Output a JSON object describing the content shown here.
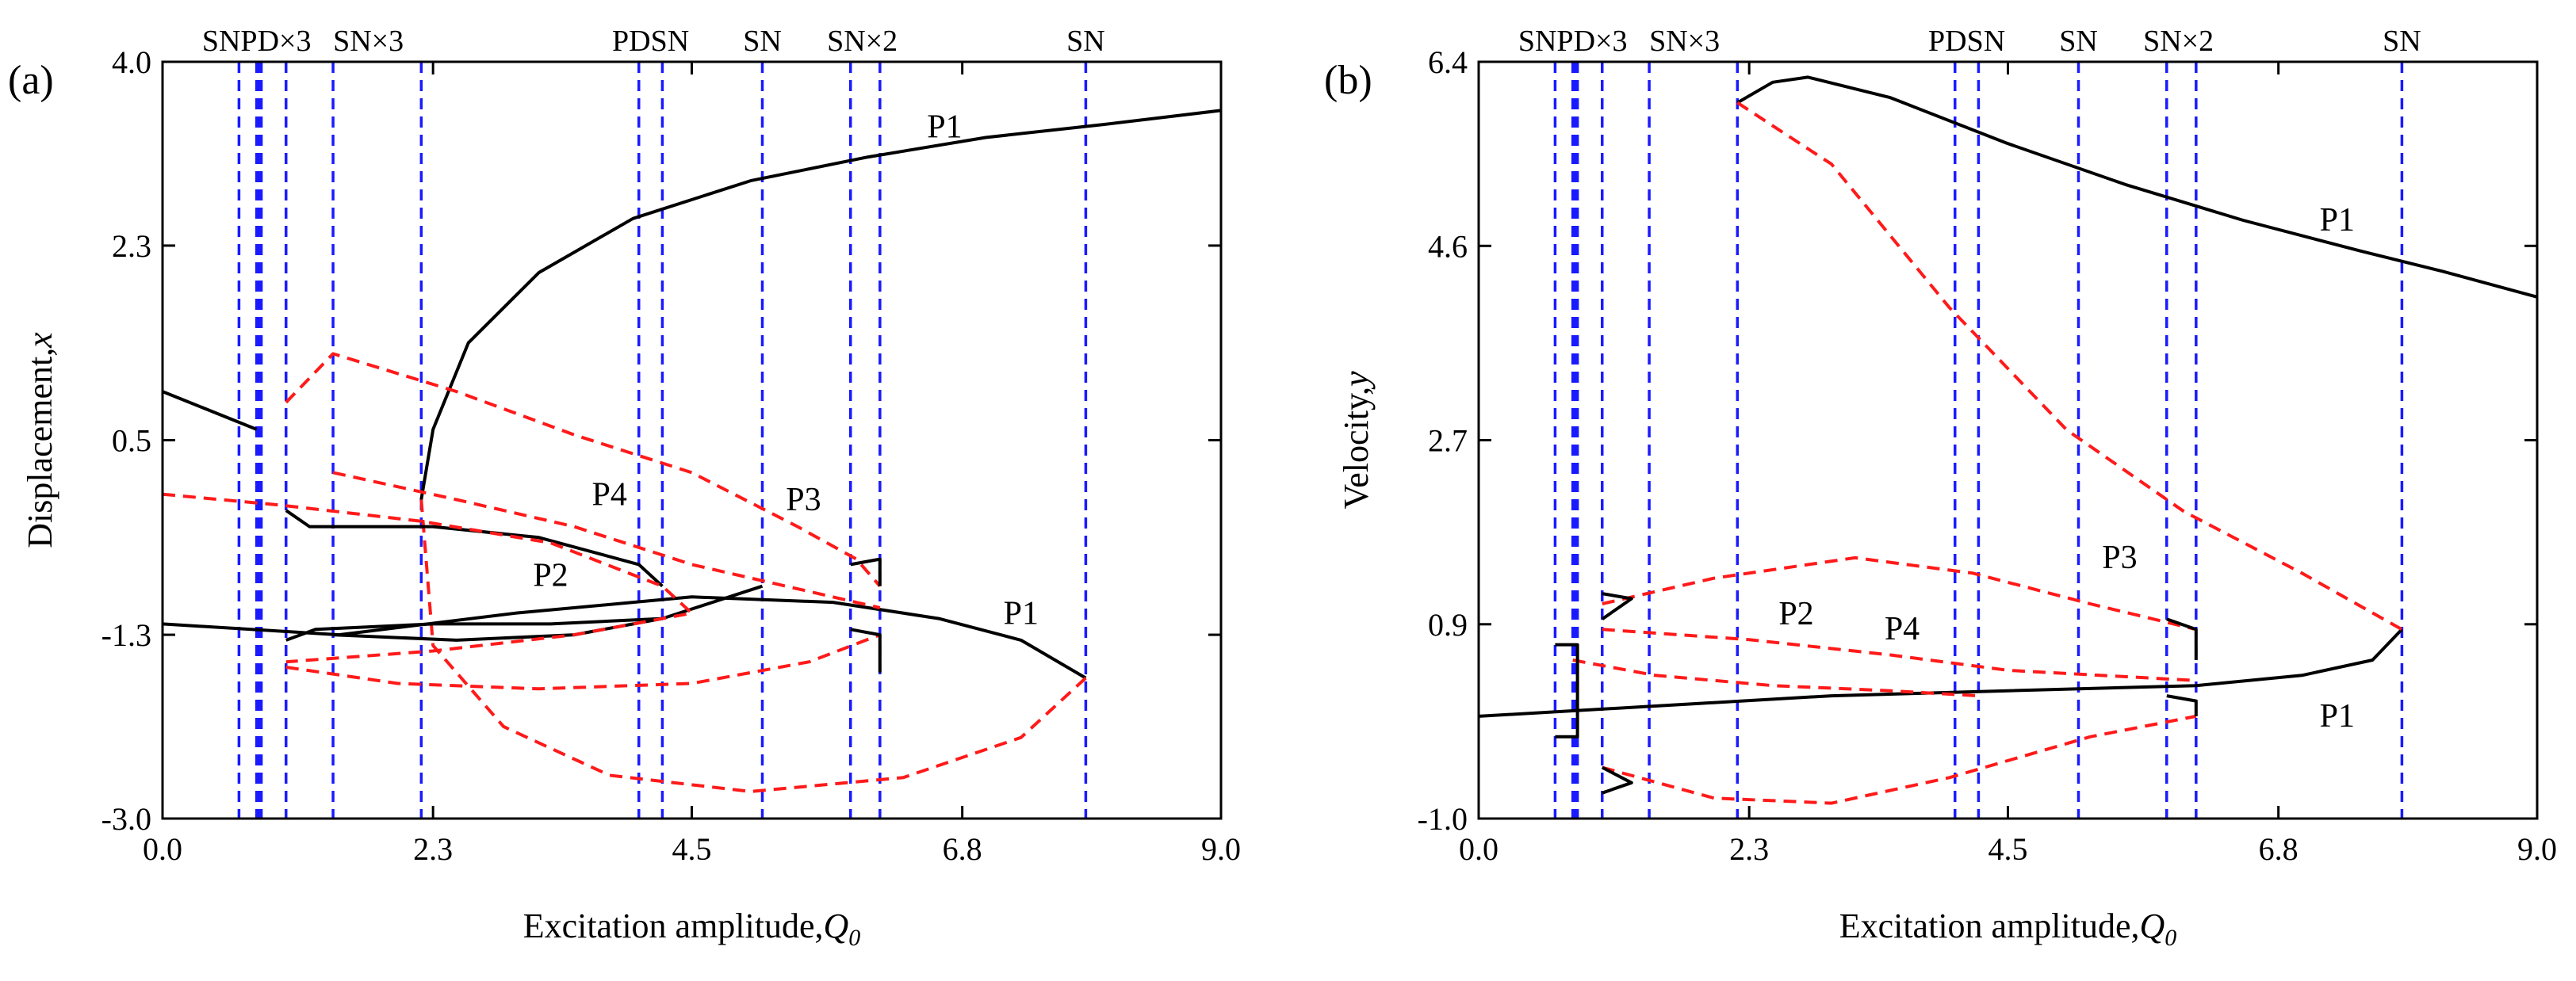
{
  "chart_data": [
    {
      "type": "line",
      "panel_label": "(a)",
      "xlabel_text": "Excitation amplitude,",
      "xlabel_symbol": "Q",
      "xlabel_sub": "0",
      "ylabel_text": "Displacement,",
      "ylabel_symbol": "x",
      "xlim": [
        0.0,
        9.0
      ],
      "ylim": [
        -3.0,
        4.0
      ],
      "xticks": [
        "0.0",
        "2.3",
        "4.5",
        "6.8",
        "9.0"
      ],
      "yticks": [
        "-3.0",
        "-1.3",
        "0.5",
        "2.3",
        "4.0"
      ],
      "bifurcation_lines": [
        0.65,
        0.8,
        0.82,
        0.84,
        1.05,
        1.45,
        2.2,
        4.05,
        4.25,
        5.1,
        5.85,
        6.1,
        7.85
      ],
      "top_labels": [
        {
          "text": "SNPD×3",
          "x": 0.8
        },
        {
          "text": "SN×3",
          "x": 1.75
        },
        {
          "text": "PDSN",
          "x": 4.15
        },
        {
          "text": "SN",
          "x": 5.1
        },
        {
          "text": "SN×2",
          "x": 5.95
        },
        {
          "text": "SN",
          "x": 7.85
        }
      ],
      "curve_labels": [
        {
          "text": "P1",
          "x": 6.65,
          "y": 3.3
        },
        {
          "text": "P1",
          "x": 7.3,
          "y": -1.2
        },
        {
          "text": "P2",
          "x": 3.3,
          "y": -0.85
        },
        {
          "text": "P3",
          "x": 5.45,
          "y": -0.15
        },
        {
          "text": "P4",
          "x": 3.8,
          "y": -0.1
        }
      ],
      "series": [
        {
          "name": "P1 upper",
          "style": "stable",
          "points": [
            [
              2.2,
              -0.05
            ],
            [
              2.3,
              0.6
            ],
            [
              2.6,
              1.4
            ],
            [
              3.2,
              2.05
            ],
            [
              4.0,
              2.55
            ],
            [
              5.0,
              2.9
            ],
            [
              6.0,
              3.12
            ],
            [
              7.0,
              3.3
            ],
            [
              8.0,
              3.42
            ],
            [
              9.0,
              3.55
            ]
          ]
        },
        {
          "name": "P1 lower",
          "style": "stable",
          "points": [
            [
              0.0,
              -1.2
            ],
            [
              1.5,
              -1.3
            ],
            [
              3.0,
              -1.1
            ],
            [
              4.5,
              -0.95
            ],
            [
              5.7,
              -1.0
            ],
            [
              6.6,
              -1.15
            ],
            [
              7.3,
              -1.35
            ],
            [
              7.85,
              -1.7
            ]
          ]
        },
        {
          "name": "P1 unstable (lower loop)",
          "style": "unstable",
          "points": [
            [
              7.85,
              -1.7
            ],
            [
              7.3,
              -2.25
            ],
            [
              6.3,
              -2.62
            ],
            [
              5.0,
              -2.75
            ],
            [
              3.8,
              -2.6
            ],
            [
              2.9,
              -2.15
            ],
            [
              2.3,
              -1.4
            ],
            [
              2.2,
              -0.05
            ]
          ]
        },
        {
          "name": "P1 branch (left)",
          "style": "stable",
          "points": [
            [
              0.0,
              0.95
            ],
            [
              0.8,
              0.6
            ]
          ]
        },
        {
          "name": "P2",
          "style": "stable",
          "points": [
            [
              1.05,
              -0.15
            ],
            [
              1.25,
              -0.3
            ],
            [
              2.3,
              -0.3
            ],
            [
              3.2,
              -0.4
            ],
            [
              4.05,
              -0.65
            ],
            [
              4.25,
              -0.85
            ]
          ]
        },
        {
          "name": "P3",
          "style": "stable",
          "points": [
            [
              1.05,
              -1.35
            ],
            [
              1.3,
              -1.25
            ],
            [
              2.3,
              -1.2
            ],
            [
              3.3,
              -1.2
            ],
            [
              4.25,
              -1.15
            ],
            [
              5.1,
              -0.85
            ]
          ]
        },
        {
          "name": "P3 lower branch",
          "style": "stable",
          "points": [
            [
              1.45,
              -1.3
            ],
            [
              2.5,
              -1.35
            ],
            [
              3.5,
              -1.3
            ],
            [
              4.25,
              -1.15
            ]
          ]
        },
        {
          "name": "P4 / SN upper loops",
          "style": "unstable",
          "points": [
            [
              1.05,
              0.85
            ],
            [
              1.45,
              1.3
            ],
            [
              2.5,
              0.95
            ],
            [
              3.5,
              0.55
            ],
            [
              4.5,
              0.2
            ],
            [
              5.4,
              -0.3
            ],
            [
              5.9,
              -0.6
            ],
            [
              6.1,
              -0.85
            ]
          ]
        },
        {
          "name": "P2 unstable",
          "style": "unstable",
          "points": [
            [
              0.0,
              0.0
            ],
            [
              1.0,
              -0.1
            ],
            [
              2.2,
              -0.25
            ],
            [
              3.3,
              -0.45
            ],
            [
              4.25,
              -0.85
            ],
            [
              4.5,
              -1.1
            ],
            [
              3.5,
              -1.3
            ],
            [
              2.3,
              -1.45
            ],
            [
              1.05,
              -1.55
            ]
          ]
        },
        {
          "name": "P3 unstable",
          "style": "unstable",
          "points": [
            [
              1.45,
              0.2
            ],
            [
              2.5,
              -0.05
            ],
            [
              3.5,
              -0.3
            ],
            [
              4.5,
              -0.65
            ],
            [
              5.5,
              -0.9
            ],
            [
              6.1,
              -1.05
            ]
          ]
        },
        {
          "name": "SN loops lower",
          "style": "unstable",
          "points": [
            [
              1.05,
              -1.6
            ],
            [
              2.0,
              -1.75
            ],
            [
              3.2,
              -1.8
            ],
            [
              4.5,
              -1.75
            ],
            [
              5.5,
              -1.55
            ],
            [
              6.1,
              -1.3
            ]
          ]
        },
        {
          "name": "SN stable lower",
          "style": "stable",
          "points": [
            [
              5.85,
              -1.25
            ],
            [
              6.1,
              -1.3
            ],
            [
              6.1,
              -1.65
            ]
          ]
        },
        {
          "name": "SN stable upper",
          "style": "stable",
          "points": [
            [
              6.1,
              -0.85
            ],
            [
              6.1,
              -0.6
            ],
            [
              5.85,
              -0.65
            ]
          ]
        }
      ]
    },
    {
      "type": "line",
      "panel_label": "(b)",
      "xlabel_text": "Excitation amplitude,",
      "xlabel_symbol": "Q",
      "xlabel_sub": "0",
      "ylabel_text": "Velocity,",
      "ylabel_symbol": "y",
      "xlim": [
        0.0,
        9.0
      ],
      "ylim": [
        -1.0,
        6.4
      ],
      "xticks": [
        "0.0",
        "2.3",
        "4.5",
        "6.8",
        "9.0"
      ],
      "yticks": [
        "-1.0",
        "0.9",
        "2.7",
        "4.6",
        "6.4"
      ],
      "bifurcation_lines": [
        0.65,
        0.8,
        0.82,
        0.84,
        1.05,
        1.45,
        2.2,
        4.05,
        4.25,
        5.1,
        5.85,
        6.1,
        7.85
      ],
      "top_labels": [
        {
          "text": "SNPD×3",
          "x": 0.8
        },
        {
          "text": "SN×3",
          "x": 1.75
        },
        {
          "text": "PDSN",
          "x": 4.15
        },
        {
          "text": "SN",
          "x": 5.1
        },
        {
          "text": "SN×2",
          "x": 5.95
        },
        {
          "text": "SN",
          "x": 7.85
        }
      ],
      "curve_labels": [
        {
          "text": "P1",
          "x": 7.3,
          "y": 4.75
        },
        {
          "text": "P1",
          "x": 7.3,
          "y": -0.1
        },
        {
          "text": "P2",
          "x": 2.7,
          "y": 0.9
        },
        {
          "text": "P3",
          "x": 5.45,
          "y": 1.45
        },
        {
          "text": "P4",
          "x": 3.6,
          "y": 0.75
        }
      ],
      "series": [
        {
          "name": "P1 upper",
          "style": "stable",
          "points": [
            [
              2.2,
              6.0
            ],
            [
              2.5,
              6.2
            ],
            [
              2.8,
              6.25
            ],
            [
              3.5,
              6.05
            ],
            [
              4.5,
              5.6
            ],
            [
              5.5,
              5.2
            ],
            [
              6.5,
              4.85
            ],
            [
              7.5,
              4.55
            ],
            [
              8.2,
              4.35
            ],
            [
              9.0,
              4.1
            ]
          ]
        },
        {
          "name": "P1 lower",
          "style": "stable",
          "points": [
            [
              0.0,
              0.0
            ],
            [
              1.5,
              0.1
            ],
            [
              3.0,
              0.2
            ],
            [
              4.5,
              0.25
            ],
            [
              6.1,
              0.3
            ],
            [
              7.0,
              0.4
            ],
            [
              7.6,
              0.55
            ],
            [
              7.85,
              0.85
            ]
          ]
        },
        {
          "name": "P1 unstable",
          "style": "unstable",
          "points": [
            [
              2.2,
              6.0
            ],
            [
              3.0,
              5.4
            ],
            [
              4.0,
              4.0
            ],
            [
              5.0,
              2.8
            ],
            [
              6.0,
              2.0
            ],
            [
              7.0,
              1.4
            ],
            [
              7.85,
              0.85
            ]
          ]
        },
        {
          "name": "P2 upper",
          "style": "unstable",
          "points": [
            [
              1.05,
              1.1
            ],
            [
              2.0,
              1.35
            ],
            [
              3.2,
              1.55
            ],
            [
              4.2,
              1.4
            ],
            [
              5.2,
              1.1
            ],
            [
              6.1,
              0.85
            ]
          ]
        },
        {
          "name": "P2 stable",
          "style": "stable",
          "points": [
            [
              1.05,
              0.95
            ],
            [
              1.3,
              1.15
            ],
            [
              1.05,
              1.2
            ]
          ]
        },
        {
          "name": "P3",
          "style": "unstable",
          "points": [
            [
              1.05,
              0.85
            ],
            [
              2.3,
              0.75
            ],
            [
              3.5,
              0.6
            ],
            [
              4.5,
              0.45
            ],
            [
              6.1,
              0.35
            ]
          ]
        },
        {
          "name": "P4",
          "style": "unstable",
          "points": [
            [
              0.8,
              0.55
            ],
            [
              1.5,
              0.4
            ],
            [
              2.5,
              0.3
            ],
            [
              3.5,
              0.25
            ],
            [
              4.25,
              0.2
            ]
          ]
        },
        {
          "name": "lower loop",
          "style": "unstable",
          "points": [
            [
              1.05,
              -0.5
            ],
            [
              2.0,
              -0.8
            ],
            [
              3.0,
              -0.85
            ],
            [
              4.0,
              -0.6
            ],
            [
              5.2,
              -0.2
            ],
            [
              6.1,
              0.0
            ]
          ]
        },
        {
          "name": "lower loop stable",
          "style": "stable",
          "points": [
            [
              1.05,
              -0.5
            ],
            [
              1.3,
              -0.65
            ],
            [
              1.05,
              -0.75
            ]
          ]
        },
        {
          "name": "SN stable right",
          "style": "stable",
          "points": [
            [
              5.85,
              0.95
            ],
            [
              6.1,
              0.85
            ],
            [
              6.1,
              0.55
            ]
          ]
        },
        {
          "name": "SN stable right lower",
          "style": "stable",
          "points": [
            [
              6.1,
              0.0
            ],
            [
              6.1,
              0.15
            ],
            [
              5.85,
              0.2
            ]
          ]
        },
        {
          "name": "small box",
          "style": "stable",
          "points": [
            [
              0.65,
              0.7
            ],
            [
              0.84,
              0.7
            ],
            [
              0.84,
              -0.2
            ],
            [
              0.65,
              -0.2
            ]
          ]
        }
      ]
    }
  ]
}
